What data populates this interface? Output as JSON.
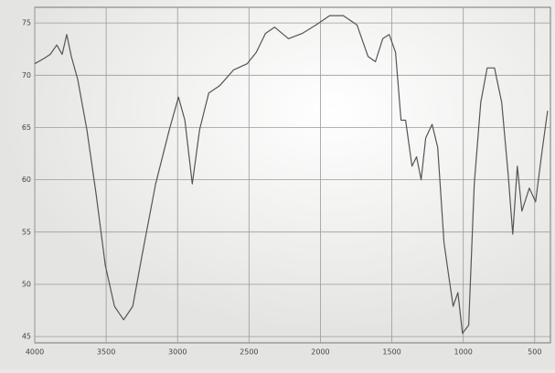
{
  "chart_data": {
    "type": "line",
    "x": [
      4000,
      3936,
      3891,
      3846,
      3808,
      3776,
      3744,
      3699,
      3635,
      3571,
      3506,
      3442,
      3378,
      3314,
      3250,
      3154,
      3058,
      2994,
      2949,
      2897,
      2846,
      2782,
      2705,
      2609,
      2513,
      2449,
      2385,
      2321,
      2224,
      2128,
      2032,
      1936,
      1840,
      1744,
      1667,
      1615,
      1564,
      1519,
      1474,
      1436,
      1404,
      1359,
      1327,
      1295,
      1263,
      1218,
      1179,
      1135,
      1103,
      1071,
      1038,
      1006,
      962,
      923,
      878,
      833,
      782,
      731,
      686,
      654,
      622,
      590,
      538,
      494,
      449,
      410
    ],
    "series": [
      {
        "color": "#555555",
        "values": [
          71.1,
          71.6,
          72.0,
          72.9,
          72.0,
          73.9,
          71.8,
          69.6,
          64.8,
          58.7,
          51.8,
          47.9,
          46.6,
          47.9,
          52.7,
          59.6,
          64.8,
          67.9,
          65.7,
          59.6,
          64.8,
          68.3,
          69.0,
          70.5,
          71.1,
          72.2,
          74.0,
          74.6,
          73.5,
          74.0,
          74.8,
          75.7,
          75.7,
          74.8,
          71.8,
          71.3,
          73.5,
          73.9,
          72.2,
          65.7,
          65.7,
          61.3,
          62.2,
          60.0,
          64.0,
          65.3,
          63.1,
          54.0,
          50.9,
          47.9,
          49.2,
          45.3,
          46.1,
          59.6,
          67.4,
          70.7,
          70.7,
          67.4,
          60.5,
          54.8,
          61.3,
          57.0,
          59.2,
          57.9,
          62.7,
          66.6
        ]
      }
    ],
    "xlim": [
      4000,
      390
    ],
    "ylim": [
      44.4,
      76.5
    ],
    "xticks": [
      4000,
      3500,
      3000,
      2500,
      2000,
      1500,
      1000,
      500
    ],
    "yticks": [
      45,
      50,
      55,
      60,
      65,
      70,
      75
    ],
    "grid": true
  }
}
